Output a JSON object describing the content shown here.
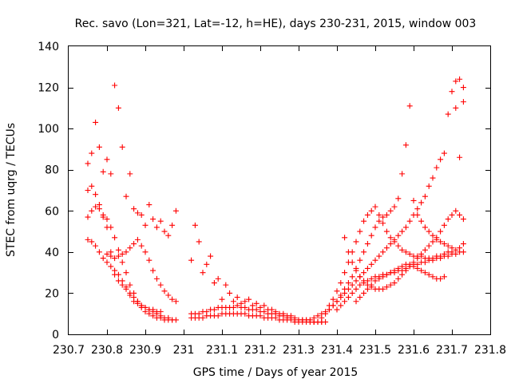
{
  "chart_data": {
    "type": "scatter",
    "title": "Rec. savo (Lon=321, Lat=-12, h=HE), days 230-231, 2015, window 003",
    "xlabel": "GPS time / Days of year 2015",
    "ylabel": "STEC from uqrg / TECUs",
    "xlim": [
      230.7,
      231.8
    ],
    "ylim": [
      0,
      140
    ],
    "xticks": [
      230.7,
      230.8,
      230.9,
      231,
      231.1,
      231.2,
      231.3,
      231.4,
      231.5,
      231.6,
      231.7,
      231.8
    ],
    "xtick_labels": [
      "230.7",
      "230.8",
      "230.9",
      "231",
      "231.1",
      "231.2",
      "231.3",
      "231.4",
      "231.5",
      "231.6",
      "231.7",
      "231.8"
    ],
    "yticks": [
      0,
      20,
      40,
      60,
      80,
      100,
      120,
      140
    ],
    "ytick_labels": [
      "0",
      "20",
      "40",
      "60",
      "80",
      "100",
      "120",
      "140"
    ],
    "grid": false,
    "legend": "none",
    "marker": "plus",
    "color": "#ff0000",
    "series": [
      {
        "x": [
          230.75,
          230.76,
          230.77,
          230.78,
          230.79,
          230.8,
          230.81,
          230.82,
          230.83,
          230.84,
          230.85,
          230.86,
          230.87,
          230.88,
          230.89,
          230.9,
          230.91,
          230.92,
          230.93,
          230.94,
          230.95,
          230.96,
          230.97,
          230.98
        ],
        "y": [
          83,
          88,
          103,
          91,
          79,
          85,
          78,
          121,
          110,
          91,
          67,
          78,
          61,
          59,
          58,
          53,
          63,
          56,
          52,
          55,
          50,
          48,
          53,
          60
        ]
      },
      {
        "x": [
          230.75,
          230.76,
          230.77,
          230.78,
          230.79,
          230.8,
          230.81,
          230.82,
          230.83,
          230.84,
          230.85,
          230.86,
          230.87,
          230.88,
          230.89,
          230.9,
          230.91,
          230.92,
          230.93,
          230.94
        ],
        "y": [
          70,
          72,
          68,
          63,
          57,
          52,
          40,
          29,
          26,
          24,
          22,
          19,
          16,
          15,
          14,
          13,
          12,
          12,
          11,
          11
        ]
      },
      {
        "x": [
          230.75,
          230.76,
          230.77,
          230.78,
          230.79,
          230.8,
          230.81,
          230.82,
          230.83,
          230.84,
          230.85,
          230.86,
          230.87,
          230.88,
          230.89,
          230.9,
          230.91,
          230.92,
          230.93,
          230.94,
          230.95,
          230.96,
          230.97
        ],
        "y": [
          57,
          60,
          62,
          61,
          58,
          56,
          52,
          47,
          41,
          35,
          30,
          24,
          20,
          16,
          13,
          11,
          10,
          9,
          8,
          8,
          7,
          7,
          7
        ]
      },
      {
        "x": [
          230.75,
          230.76,
          230.77,
          230.78,
          230.79,
          230.8,
          230.81,
          230.82,
          230.83,
          230.84,
          230.85,
          230.86,
          230.87,
          230.88,
          230.89,
          230.9,
          230.91,
          230.92,
          230.93,
          230.94,
          230.95,
          230.96,
          230.97,
          230.98
        ],
        "y": [
          46,
          45,
          43,
          40,
          37,
          35,
          33,
          31,
          29,
          26,
          23,
          20,
          18,
          16,
          14,
          13,
          12,
          11,
          10,
          9,
          8,
          8,
          7,
          7
        ]
      },
      {
        "x": [
          230.8,
          230.81,
          230.82,
          230.83,
          230.84,
          230.85,
          230.86,
          230.87,
          230.88,
          230.89,
          230.9,
          230.91,
          230.92,
          230.93,
          230.94,
          230.95,
          230.96,
          230.97,
          230.98
        ],
        "y": [
          39,
          38,
          37,
          38,
          39,
          40,
          42,
          44,
          46,
          43,
          40,
          36,
          31,
          27,
          24,
          21,
          19,
          17,
          16
        ]
      },
      {
        "x": [
          231.02,
          231.03,
          231.04,
          231.05,
          231.06,
          231.07,
          231.08,
          231.09,
          231.1,
          231.11,
          231.12,
          231.13,
          231.14,
          231.15,
          231.16,
          231.17,
          231.18,
          231.19,
          231.2,
          231.21,
          231.22,
          231.23,
          231.24,
          231.25,
          231.26,
          231.27,
          231.28,
          231.29,
          231.3,
          231.31,
          231.32,
          231.33,
          231.34,
          231.35,
          231.36,
          231.37
        ],
        "y": [
          36,
          53,
          45,
          30,
          34,
          38,
          25,
          27,
          17,
          24,
          20,
          16,
          18,
          15,
          16,
          17,
          14,
          15,
          13,
          14,
          12,
          12,
          11,
          10,
          10,
          9,
          9,
          8,
          7,
          7,
          7,
          7,
          6,
          6,
          6,
          6
        ]
      },
      {
        "x": [
          231.02,
          231.03,
          231.04,
          231.05,
          231.06,
          231.07,
          231.08,
          231.09,
          231.1,
          231.11,
          231.12,
          231.13,
          231.14,
          231.15,
          231.16,
          231.17,
          231.18,
          231.19,
          231.2,
          231.21,
          231.22,
          231.23,
          231.24,
          231.25,
          231.26,
          231.27,
          231.28,
          231.29,
          231.3,
          231.31,
          231.32,
          231.33,
          231.34,
          231.35,
          231.36
        ],
        "y": [
          10,
          10,
          10,
          11,
          11,
          12,
          12,
          13,
          13,
          13,
          13,
          13,
          14,
          13,
          13,
          12,
          12,
          12,
          11,
          11,
          10,
          10,
          10,
          9,
          9,
          8,
          8,
          7,
          7,
          7,
          7,
          6,
          6,
          6,
          6
        ]
      },
      {
        "x": [
          231.02,
          231.03,
          231.04,
          231.05,
          231.06,
          231.07,
          231.08,
          231.09,
          231.1,
          231.11,
          231.12,
          231.13,
          231.14,
          231.15,
          231.16,
          231.17,
          231.18,
          231.19,
          231.2,
          231.21,
          231.22,
          231.23,
          231.24,
          231.25,
          231.26,
          231.27,
          231.28,
          231.29,
          231.3,
          231.31,
          231.32,
          231.33,
          231.34,
          231.35
        ],
        "y": [
          8,
          8,
          8,
          8,
          9,
          9,
          9,
          9,
          10,
          10,
          10,
          10,
          10,
          10,
          10,
          9,
          9,
          9,
          9,
          8,
          8,
          8,
          8,
          7,
          7,
          7,
          7,
          6,
          6,
          6,
          6,
          6,
          6,
          6
        ]
      },
      {
        "x": [
          231.33,
          231.34,
          231.35,
          231.36,
          231.37,
          231.38,
          231.39,
          231.4,
          231.41,
          231.42,
          231.43,
          231.44,
          231.45,
          231.46,
          231.47,
          231.48,
          231.49,
          231.5,
          231.51,
          231.52,
          231.53,
          231.54,
          231.55,
          231.56,
          231.57,
          231.58,
          231.59,
          231.6,
          231.61,
          231.62,
          231.63,
          231.64,
          231.65,
          231.66,
          231.67,
          231.68,
          231.69,
          231.7,
          231.71,
          231.72,
          231.73
        ],
        "y": [
          7,
          8,
          9,
          10,
          11,
          12,
          14,
          16,
          18,
          20,
          22,
          24,
          26,
          28,
          30,
          32,
          34,
          36,
          38,
          40,
          42,
          44,
          46,
          48,
          50,
          52,
          55,
          58,
          61,
          64,
          67,
          72,
          76,
          81,
          85,
          88,
          107,
          118,
          123,
          124,
          120
        ]
      },
      {
        "x": [
          231.36,
          231.37,
          231.38,
          231.39,
          231.4,
          231.41,
          231.42,
          231.43,
          231.44,
          231.45,
          231.46,
          231.47,
          231.48,
          231.49,
          231.5,
          231.51,
          231.52,
          231.53,
          231.54,
          231.55,
          231.56,
          231.57,
          231.58,
          231.59,
          231.6,
          231.61,
          231.62,
          231.63,
          231.64,
          231.65,
          231.66,
          231.67,
          231.68,
          231.69,
          231.7,
          231.71,
          231.72,
          231.73
        ],
        "y": [
          8,
          10,
          12,
          14,
          16,
          19,
          22,
          25,
          28,
          32,
          36,
          40,
          44,
          48,
          52,
          55,
          57,
          58,
          60,
          62,
          66,
          78,
          92,
          111,
          65,
          58,
          55,
          52,
          50,
          48,
          46,
          45,
          44,
          43,
          42,
          110,
          86,
          113
        ]
      },
      {
        "x": [
          231.38,
          231.39,
          231.4,
          231.41,
          231.42,
          231.43,
          231.44,
          231.45,
          231.46,
          231.47,
          231.48,
          231.49,
          231.5,
          231.51,
          231.52,
          231.53,
          231.54,
          231.55,
          231.56,
          231.57,
          231.58,
          231.59,
          231.6,
          231.61,
          231.62,
          231.63,
          231.64,
          231.65,
          231.66,
          231.67,
          231.68,
          231.69,
          231.7,
          231.71,
          231.72,
          231.73
        ],
        "y": [
          14,
          17,
          21,
          25,
          30,
          35,
          40,
          45,
          50,
          55,
          58,
          60,
          62,
          58,
          54,
          50,
          47,
          45,
          43,
          41,
          40,
          39,
          38,
          38,
          38,
          37,
          37,
          37,
          38,
          38,
          39,
          40,
          40,
          41,
          42,
          44
        ]
      },
      {
        "x": [
          231.4,
          231.41,
          231.42,
          231.43,
          231.44,
          231.45,
          231.46,
          231.47,
          231.48,
          231.49,
          231.5,
          231.51,
          231.52,
          231.53,
          231.54,
          231.55,
          231.56,
          231.57,
          231.58,
          231.59,
          231.6,
          231.61,
          231.62,
          231.63,
          231.64,
          231.65,
          231.66,
          231.67,
          231.68,
          231.69,
          231.7,
          231.71,
          231.72,
          231.73
        ],
        "y": [
          12,
          14,
          16,
          18,
          20,
          22,
          24,
          25,
          26,
          27,
          28,
          28,
          29,
          29,
          30,
          30,
          31,
          31,
          32,
          33,
          34,
          34,
          35,
          35,
          36,
          36,
          37,
          37,
          38,
          38,
          39,
          39,
          40,
          40
        ]
      },
      {
        "x": [
          231.42,
          231.43,
          231.44,
          231.45,
          231.46,
          231.47,
          231.48,
          231.49,
          231.5,
          231.51,
          231.52,
          231.53,
          231.54,
          231.55,
          231.56,
          231.57,
          231.58,
          231.59,
          231.6,
          231.61,
          231.62,
          231.63,
          231.64,
          231.65,
          231.66,
          231.67,
          231.68,
          231.69,
          231.7,
          231.71,
          231.72,
          231.73
        ],
        "y": [
          47,
          40,
          35,
          31,
          28,
          26,
          24,
          23,
          22,
          22,
          22,
          23,
          24,
          25,
          27,
          29,
          31,
          33,
          35,
          37,
          39,
          41,
          43,
          45,
          47,
          50,
          53,
          56,
          58,
          60,
          58,
          56
        ]
      },
      {
        "x": [
          231.45,
          231.46,
          231.47,
          231.48,
          231.49,
          231.5,
          231.51,
          231.52,
          231.53,
          231.54,
          231.55,
          231.56,
          231.57,
          231.58,
          231.59,
          231.6,
          231.61,
          231.62,
          231.63,
          231.64,
          231.65,
          231.66,
          231.67,
          231.68
        ],
        "y": [
          16,
          18,
          20,
          22,
          24,
          26,
          27,
          28,
          29,
          30,
          31,
          32,
          33,
          34,
          34,
          33,
          32,
          31,
          30,
          29,
          28,
          27,
          27,
          28
        ]
      }
    ]
  }
}
